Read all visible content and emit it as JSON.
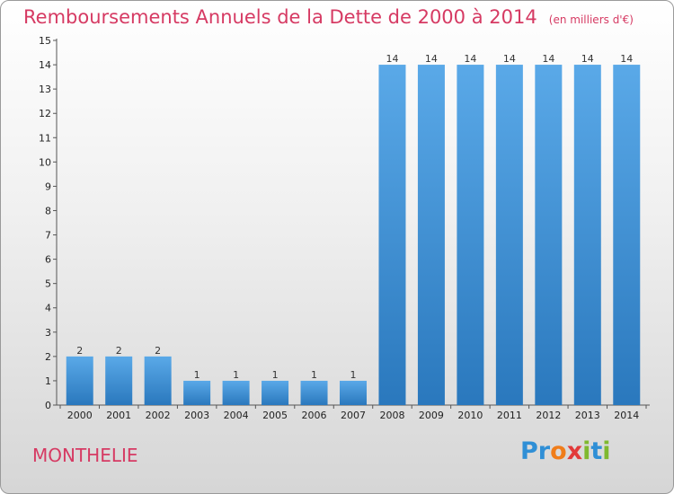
{
  "header": {
    "title": "Remboursements Annuels de la Dette de 2000 à 2014",
    "subtitle": "(en milliers d'€)"
  },
  "footer": {
    "commune": "MONTHELIE",
    "logo": "Proxiti",
    "logo_letters": [
      {
        "ch": "P",
        "color": "#2f8fd6"
      },
      {
        "ch": "r",
        "color": "#2f8fd6"
      },
      {
        "ch": "o",
        "color": "#f07d1a"
      },
      {
        "ch": "x",
        "color": "#e23a3a"
      },
      {
        "ch": "i",
        "color": "#7fb92f"
      },
      {
        "ch": "t",
        "color": "#2f8fd6"
      },
      {
        "ch": "i",
        "color": "#7fb92f"
      }
    ]
  },
  "colors": {
    "accent": "#d63a63",
    "bar_top": "#5aa9e8",
    "bar_bottom": "#2a78bd"
  },
  "chart_data": {
    "type": "bar",
    "categories": [
      "2000",
      "2001",
      "2002",
      "2003",
      "2004",
      "2005",
      "2006",
      "2007",
      "2008",
      "2009",
      "2010",
      "2011",
      "2012",
      "2013",
      "2014"
    ],
    "values": [
      2,
      2,
      2,
      1,
      1,
      1,
      1,
      1,
      14,
      14,
      14,
      14,
      14,
      14,
      14
    ],
    "data_labels": [
      "2",
      "2",
      "2",
      "1",
      "1",
      "1",
      "1",
      "1",
      "14",
      "14",
      "14",
      "14",
      "14",
      "14",
      "14"
    ],
    "y_ticks": [
      "0",
      "1",
      "2",
      "3",
      "4",
      "5",
      "6",
      "7",
      "8",
      "9",
      "10",
      "11",
      "12",
      "13",
      "14",
      "15"
    ],
    "ylim": [
      0,
      15
    ],
    "grid": false,
    "legend": "none"
  }
}
